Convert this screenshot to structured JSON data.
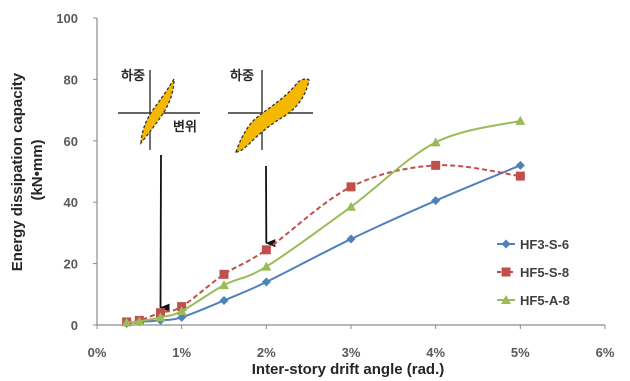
{
  "chart_data": {
    "type": "line",
    "xlabel": "Inter-story drift angle (rad.)",
    "ylabel": "Energy dissipation capacity (kN•mm)",
    "ylabel_lines": [
      "Energy dissipation capacity",
      "(kN•mm)"
    ],
    "xlim": [
      0,
      6
    ],
    "ylim": [
      0,
      100
    ],
    "x_ticks": [
      {
        "value": 0,
        "label": "0%"
      },
      {
        "value": 1,
        "label": "1%"
      },
      {
        "value": 2,
        "label": "2%"
      },
      {
        "value": 3,
        "label": "3%"
      },
      {
        "value": 4,
        "label": "4%"
      },
      {
        "value": 5,
        "label": "5%"
      },
      {
        "value": 6,
        "label": "6%"
      }
    ],
    "y_ticks": [
      0,
      20,
      40,
      60,
      80,
      100
    ],
    "grid": false,
    "legend_position": "right",
    "series": [
      {
        "name": "HF3-S-6",
        "color": "#4f81bd",
        "marker": "diamond",
        "line_style": "solid",
        "x": [
          0.35,
          0.5,
          0.75,
          1.0,
          1.5,
          2.0,
          3.0,
          4.0,
          5.0
        ],
        "y": [
          0.5,
          1.0,
          1.5,
          2.5,
          8.0,
          14.0,
          28.0,
          40.5,
          52.0
        ]
      },
      {
        "name": "HF5-S-8",
        "color": "#c0504d",
        "marker": "square",
        "line_style": "dashed",
        "x": [
          0.35,
          0.5,
          0.75,
          1.0,
          1.5,
          2.0,
          3.0,
          4.0,
          5.0
        ],
        "y": [
          1.0,
          1.5,
          4.0,
          6.0,
          16.5,
          24.5,
          45.0,
          52.0,
          48.5
        ]
      },
      {
        "name": "HF5-A-8",
        "color": "#9bbb59",
        "marker": "triangle",
        "line_style": "solid",
        "x": [
          0.35,
          0.5,
          0.75,
          1.0,
          1.5,
          2.0,
          3.0,
          4.0,
          5.0
        ],
        "y": [
          0.8,
          1.2,
          2.5,
          4.5,
          13.0,
          19.0,
          38.5,
          59.5,
          66.5
        ]
      }
    ],
    "insets": [
      {
        "load_label": "하중",
        "displacement_label": "변위",
        "fill_color": "#f5b800",
        "arrow_to_x": 0.75,
        "arrow_to_y": 5
      },
      {
        "load_label": "하중",
        "displacement_label": "",
        "fill_color": "#f5b800",
        "arrow_to_x": 2.0,
        "arrow_to_y": 26
      }
    ]
  }
}
